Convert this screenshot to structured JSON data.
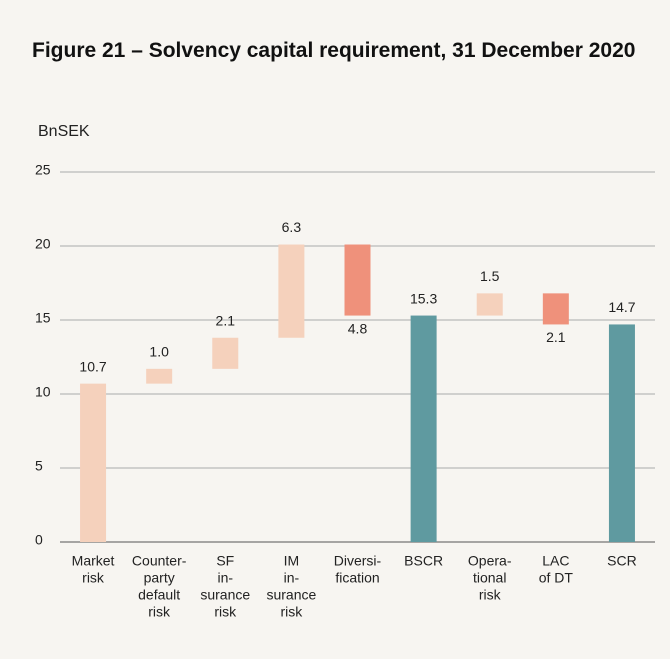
{
  "chart_data": {
    "type": "waterfall",
    "title": "Figure 21 – Solvency capital requirement, 31 December 2020",
    "y_label": "BnSEK",
    "categories": [
      [
        "Market",
        "risk"
      ],
      [
        "Counter-",
        "party",
        "default",
        "risk"
      ],
      [
        "SF",
        "in-",
        "surance",
        "risk"
      ],
      [
        "IM",
        "in-",
        "surance",
        "risk"
      ],
      [
        "Diversi-",
        "fication"
      ],
      [
        "BSCR"
      ],
      [
        "Opera-",
        "tional",
        "risk"
      ],
      [
        "LAC",
        "of DT"
      ],
      [
        "SCR"
      ]
    ],
    "values": [
      10.7,
      1.0,
      2.1,
      6.3,
      4.8,
      15.3,
      1.5,
      2.1,
      14.7
    ],
    "value_labels": [
      "10.7",
      "1.0",
      "2.1",
      "6.3",
      "4.8",
      "15.3",
      "1.5",
      "2.1",
      "14.7"
    ],
    "measure": [
      "increase",
      "increase",
      "increase",
      "increase",
      "decrease",
      "total",
      "increase",
      "decrease",
      "total"
    ],
    "colors": {
      "increase": "#f5d1bc",
      "decrease": "#ef917b",
      "total": "#5f9aa0"
    },
    "ylim": [
      0,
      25
    ],
    "yticks": [
      0,
      5,
      10,
      15,
      20,
      25
    ],
    "grid": true
  }
}
